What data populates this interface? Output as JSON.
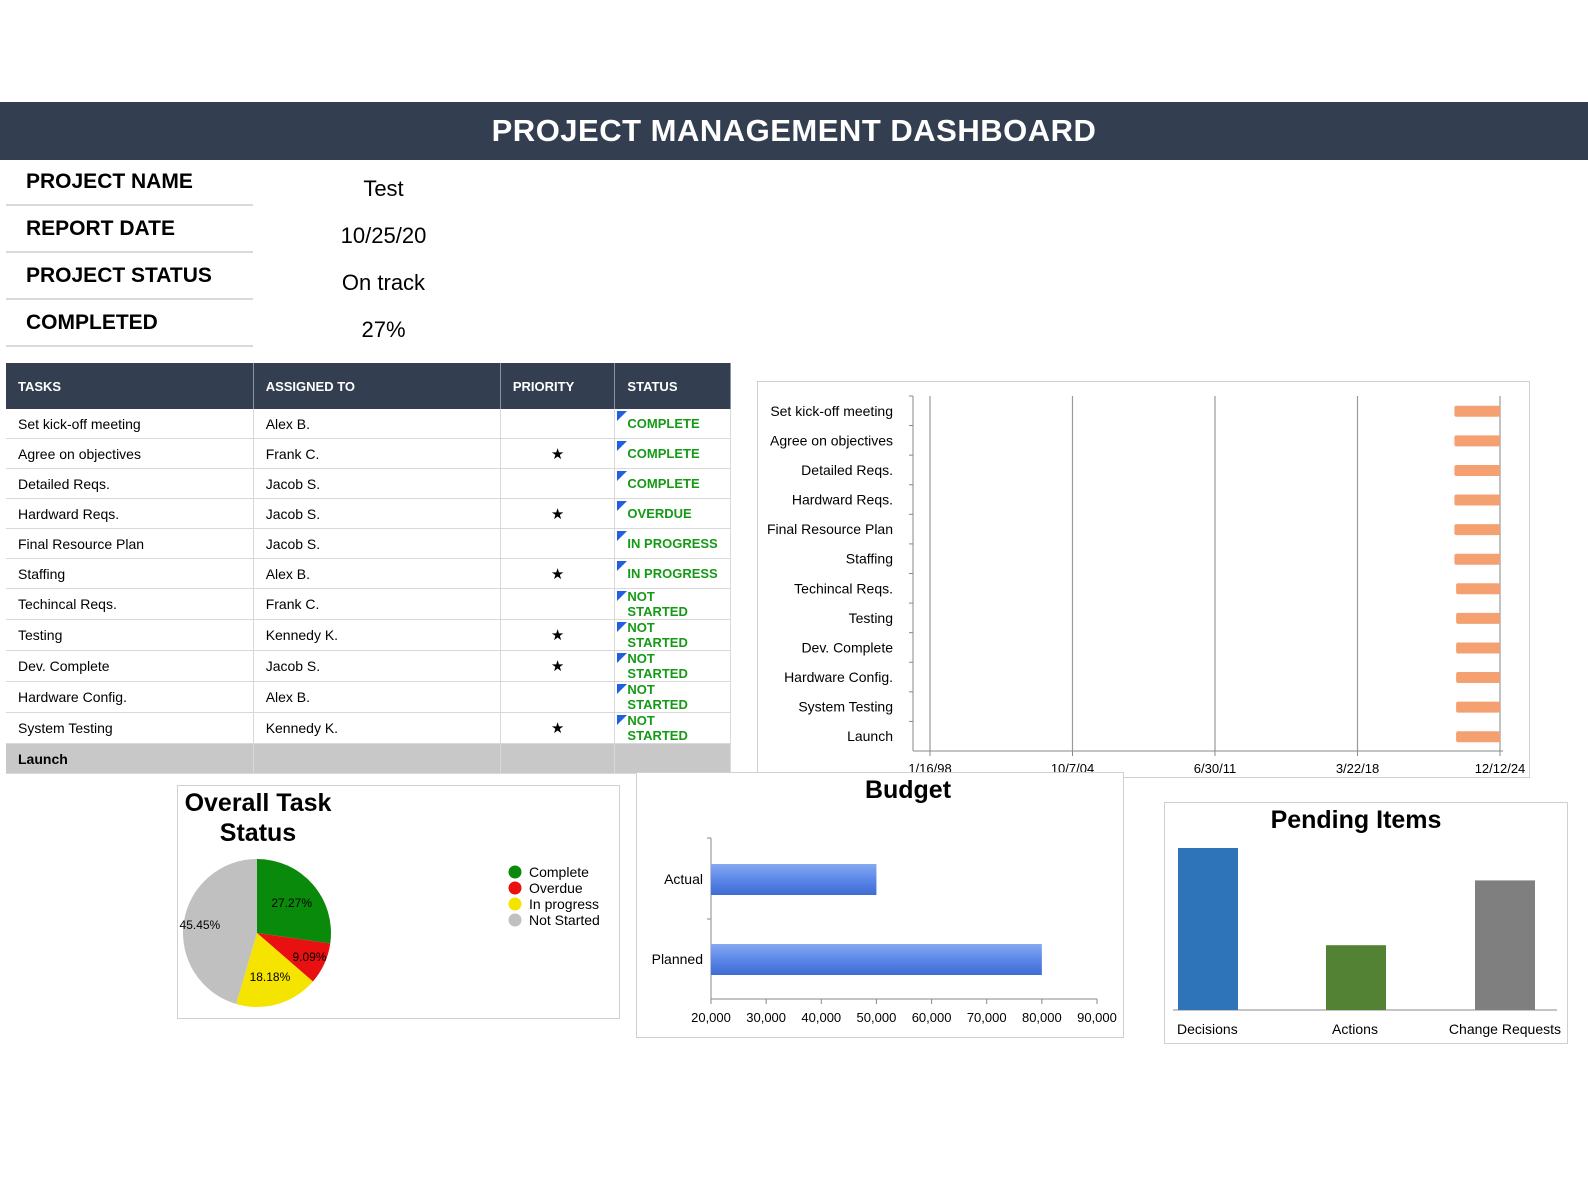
{
  "header": {
    "title": "PROJECT MANAGEMENT DASHBOARD"
  },
  "info": [
    {
      "label": "PROJECT NAME",
      "value": "Test"
    },
    {
      "label": "REPORT DATE",
      "value": "10/25/20"
    },
    {
      "label": "PROJECT STATUS",
      "value": "On track"
    },
    {
      "label": "COMPLETED",
      "value": "27%"
    }
  ],
  "task_table": {
    "headers": [
      "TASKS",
      "ASSIGNED TO",
      "PRIORITY",
      "STATUS"
    ],
    "rows": [
      {
        "task": "Set kick-off meeting",
        "assigned": "Alex B.",
        "priority": "",
        "status": "COMPLETE"
      },
      {
        "task": "Agree on objectives",
        "assigned": "Frank C.",
        "priority": "★",
        "status": "COMPLETE"
      },
      {
        "task": "Detailed Reqs.",
        "assigned": "Jacob S.",
        "priority": "",
        "status": "COMPLETE"
      },
      {
        "task": "Hardward Reqs.",
        "assigned": "Jacob S.",
        "priority": "★",
        "status": "OVERDUE"
      },
      {
        "task": "Final Resource Plan",
        "assigned": "Jacob S.",
        "priority": "",
        "status": "IN PROGRESS"
      },
      {
        "task": "Staffing",
        "assigned": "Alex B.",
        "priority": "★",
        "status": "IN PROGRESS"
      },
      {
        "task": "Techincal Reqs.",
        "assigned": "Frank C.",
        "priority": "",
        "status": "NOT STARTED"
      },
      {
        "task": "Testing",
        "assigned": "Kennedy K.",
        "priority": "★",
        "status": "NOT STARTED"
      },
      {
        "task": "Dev. Complete",
        "assigned": "Jacob S.",
        "priority": "★",
        "status": "NOT STARTED"
      },
      {
        "task": "Hardware Config.",
        "assigned": "Alex B.",
        "priority": "",
        "status": "NOT STARTED"
      },
      {
        "task": "System Testing",
        "assigned": "Kennedy K.",
        "priority": "★",
        "status": "NOT STARTED"
      },
      {
        "task": "Launch",
        "assigned": "",
        "priority": "",
        "status": ""
      }
    ]
  },
  "colors": {
    "header_bg": "#333f50",
    "status_text": "#159a15",
    "status_flag": "#1f5fe0",
    "gantt_bar": "#f4a070",
    "budget_bar": "#5b87e8",
    "pie_complete": "#0a8a0a",
    "pie_overdue": "#e81010",
    "pie_in_progress": "#f5e400",
    "pie_not_started": "#c0c0c0",
    "pending_decisions": "#2e74b8",
    "pending_actions": "#548235",
    "pending_change_requests": "#7f7f7f"
  },
  "chart_data": [
    {
      "type": "bar",
      "orientation": "horizontal",
      "categories": [
        "Set kick-off meeting",
        "Agree on objectives",
        "Detailed Reqs.",
        "Hardward Reqs.",
        "Final Resource Plan",
        "Staffing",
        "Techincal Reqs.",
        "Testing",
        "Dev. Complete",
        "Hardware Config.",
        "System Testing",
        "Launch"
      ],
      "x_ticks": [
        "1/16/98",
        "10/7/04",
        "6/30/11",
        "3/22/18",
        "12/12/24"
      ],
      "x_tick_positions": [
        0,
        0.25,
        0.5,
        0.75,
        1.0
      ],
      "bar_start": [
        0.92,
        0.92,
        0.92,
        0.92,
        0.92,
        0.92,
        0.923,
        0.923,
        0.923,
        0.923,
        0.923,
        0.923
      ],
      "bar_end": [
        1.0,
        1.0,
        1.0,
        1.0,
        1.0,
        1.0,
        1.0,
        1.0,
        1.0,
        1.0,
        1.0,
        1.0
      ],
      "grid": true
    },
    {
      "type": "pie",
      "title": "Overall Task Status",
      "labels": [
        "Complete",
        "Overdue",
        "In progress",
        "Not Started"
      ],
      "values": [
        27.27,
        9.09,
        18.18,
        45.45
      ],
      "data_labels": [
        "27.27%",
        "9.09%",
        "18.18%",
        "45.45%"
      ],
      "legend": "right"
    },
    {
      "type": "bar",
      "orientation": "horizontal",
      "title": "Budget",
      "categories": [
        "Actual",
        "Planned"
      ],
      "values": [
        50000,
        80000
      ],
      "xlim": [
        20000,
        90000
      ],
      "x_ticks": [
        "20,000",
        "30,000",
        "40,000",
        "50,000",
        "60,000",
        "70,000",
        "80,000",
        "90,000"
      ]
    },
    {
      "type": "bar",
      "title": "Pending Items",
      "categories": [
        "Decisions",
        "Actions",
        "Change Requests"
      ],
      "values": [
        10,
        4,
        8
      ],
      "ylim": [
        0,
        10
      ]
    }
  ]
}
